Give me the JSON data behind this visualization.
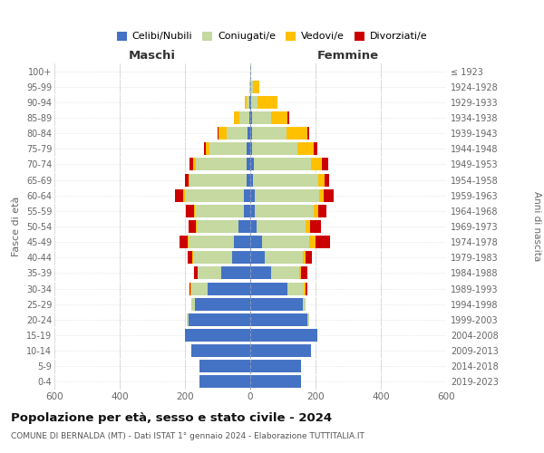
{
  "age_groups": [
    "0-4",
    "5-9",
    "10-14",
    "15-19",
    "20-24",
    "25-29",
    "30-34",
    "35-39",
    "40-44",
    "45-49",
    "50-54",
    "55-59",
    "60-64",
    "65-69",
    "70-74",
    "75-79",
    "80-84",
    "85-89",
    "90-94",
    "95-99",
    "100+"
  ],
  "birth_years": [
    "2019-2023",
    "2014-2018",
    "2009-2013",
    "2004-2008",
    "1999-2003",
    "1994-1998",
    "1989-1993",
    "1984-1988",
    "1979-1983",
    "1974-1978",
    "1969-1973",
    "1964-1968",
    "1959-1963",
    "1954-1958",
    "1949-1953",
    "1944-1948",
    "1939-1943",
    "1934-1938",
    "1929-1933",
    "1924-1928",
    "≤ 1923"
  ],
  "colors": {
    "celibi": "#4472c4",
    "coniugati": "#c5d9a0",
    "vedovi": "#ffc000",
    "divorziati": "#cc0000"
  },
  "maschi": {
    "celibi": [
      155,
      155,
      180,
      200,
      190,
      170,
      130,
      90,
      55,
      50,
      35,
      20,
      20,
      10,
      12,
      10,
      8,
      3,
      2,
      0,
      0
    ],
    "coniugati": [
      0,
      0,
      0,
      0,
      5,
      10,
      50,
      70,
      120,
      140,
      130,
      150,
      180,
      175,
      155,
      115,
      65,
      30,
      8,
      2,
      0
    ],
    "vedovi": [
      0,
      0,
      0,
      0,
      0,
      0,
      2,
      2,
      2,
      3,
      3,
      3,
      5,
      5,
      8,
      12,
      25,
      18,
      8,
      2,
      0
    ],
    "divorziati": [
      0,
      0,
      0,
      0,
      0,
      0,
      5,
      10,
      15,
      25,
      20,
      25,
      25,
      10,
      10,
      5,
      3,
      0,
      0,
      0,
      0
    ]
  },
  "femmine": {
    "nubili": [
      155,
      155,
      185,
      205,
      175,
      160,
      115,
      65,
      45,
      35,
      20,
      15,
      15,
      8,
      10,
      5,
      5,
      5,
      2,
      0,
      0
    ],
    "coniugate": [
      0,
      0,
      0,
      0,
      5,
      10,
      50,
      85,
      115,
      145,
      150,
      180,
      195,
      200,
      175,
      140,
      105,
      60,
      20,
      8,
      2
    ],
    "vedove": [
      0,
      0,
      0,
      0,
      0,
      0,
      5,
      5,
      10,
      20,
      12,
      12,
      15,
      20,
      35,
      50,
      65,
      50,
      60,
      20,
      2
    ],
    "divorziate": [
      0,
      0,
      0,
      0,
      0,
      0,
      5,
      20,
      20,
      45,
      35,
      25,
      30,
      15,
      20,
      10,
      5,
      5,
      0,
      0,
      0
    ]
  },
  "title": "Popolazione per età, sesso e stato civile - 2024",
  "subtitle": "COMUNE DI BERNALDA (MT) - Dati ISTAT 1° gennaio 2024 - Elaborazione TUTTITALIA.IT",
  "xlabel_left": "Maschi",
  "xlabel_right": "Femmine",
  "ylabel_left": "Fasce di età",
  "ylabel_right": "Anni di nascita",
  "xlim": 600,
  "bg_color": "#ffffff",
  "grid_color": "#cccccc",
  "legend_labels": [
    "Celibi/Nubili",
    "Coniugati/e",
    "Vedovi/e",
    "Divorziati/e"
  ]
}
